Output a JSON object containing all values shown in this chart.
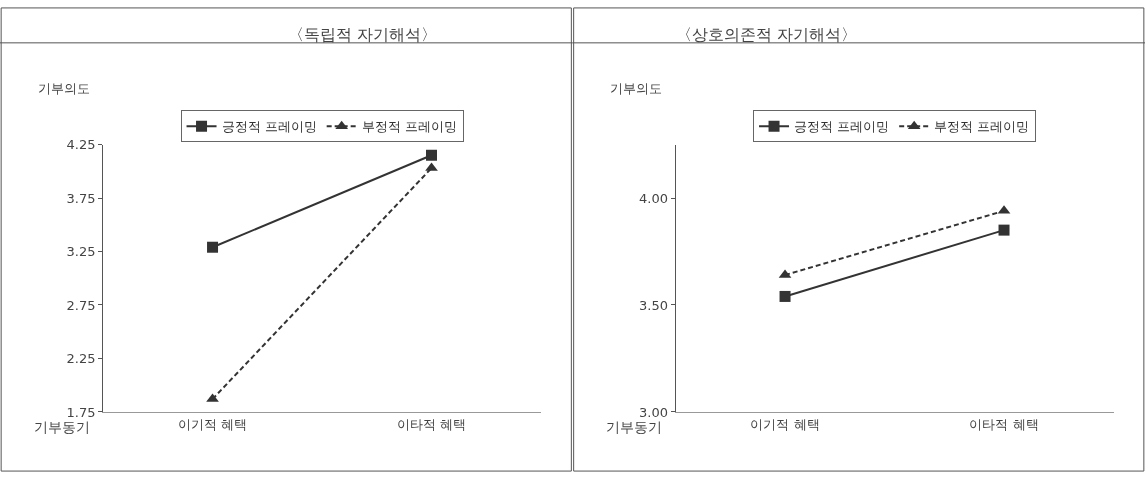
{
  "chart_data": [
    {
      "type": "line",
      "title": "〈독립적 자기해석〉",
      "xlabel": "기부동기",
      "ylabel": "기부의도",
      "categories": [
        "이기적 혜택",
        "이타적 혜택"
      ],
      "ylim": [
        1.75,
        4.25
      ],
      "yticks": [
        1.75,
        2.25,
        2.75,
        3.25,
        3.75,
        4.25
      ],
      "legend": "top",
      "series": [
        {
          "name": "긍정적 프레이밍",
          "color": "#333333",
          "marker": "square",
          "line_style": "solid",
          "values": [
            3.29,
            4.15
          ]
        },
        {
          "name": "부정적 프레이밍",
          "color": "#333333",
          "marker": "triangle",
          "line_style": "dashed",
          "values": [
            1.87,
            4.03
          ]
        }
      ]
    },
    {
      "type": "line",
      "title": "〈상호의존적 자기해석〉",
      "xlabel": "기부동기",
      "ylabel": "기부의도",
      "categories": [
        "이기적 혜택",
        "이타적 혜택"
      ],
      "ylim": [
        3.0,
        4.25
      ],
      "yticks": [
        {
          "value": 3.0,
          "label": "3.00"
        },
        {
          "value": 3.5,
          "label": "3.50"
        },
        {
          "value": 4.0,
          "label": "4.00"
        }
      ],
      "legend": "top",
      "series": [
        {
          "name": "긍정적 프레이밍",
          "color": "#333333",
          "marker": "square",
          "line_style": "solid",
          "values": [
            3.54,
            3.85
          ]
        },
        {
          "name": "부정적 프레이밍",
          "color": "#333333",
          "marker": "triangle",
          "line_style": "dashed",
          "values": [
            3.64,
            3.94
          ]
        }
      ]
    }
  ]
}
